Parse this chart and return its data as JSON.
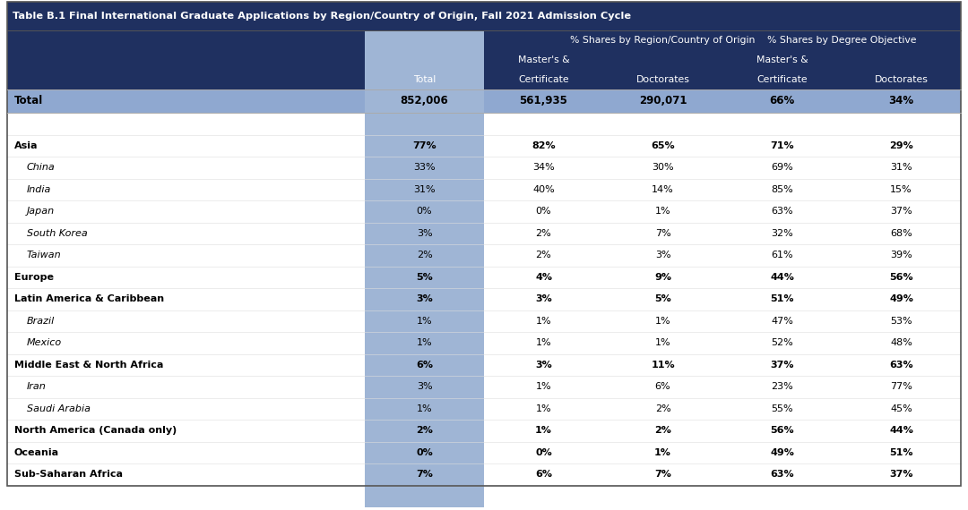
{
  "title": "Table B.1 Final International Graduate Applications by Region/Country of Origin, Fall 2021 Admission Cycle",
  "header_bg": "#1f3060",
  "total_row_bg": "#8fa8d0",
  "col_highlight_bg": "#9fb5d5",
  "white_bg": "#ffffff",
  "subheader1": "% Shares by Region/Country of Origin",
  "subheader2": "% Shares by Degree Objective",
  "title_color": "#ffffff",
  "header_text_color": "#ffffff",
  "data_text_color": "#000000",
  "rows": [
    {
      "label": "Total",
      "values": [
        "852,006",
        "561,935",
        "290,071",
        "66%",
        "34%"
      ],
      "bold": true,
      "indent": false,
      "is_total": true
    },
    {
      "label": "",
      "values": [
        "",
        "",
        "",
        "",
        ""
      ],
      "bold": false,
      "indent": false,
      "is_total": false
    },
    {
      "label": "Asia",
      "values": [
        "77%",
        "82%",
        "65%",
        "71%",
        "29%"
      ],
      "bold": true,
      "indent": false,
      "is_total": false
    },
    {
      "label": "China",
      "values": [
        "33%",
        "34%",
        "30%",
        "69%",
        "31%"
      ],
      "bold": false,
      "indent": true,
      "is_total": false
    },
    {
      "label": "India",
      "values": [
        "31%",
        "40%",
        "14%",
        "85%",
        "15%"
      ],
      "bold": false,
      "indent": true,
      "is_total": false
    },
    {
      "label": "Japan",
      "values": [
        "0%",
        "0%",
        "1%",
        "63%",
        "37%"
      ],
      "bold": false,
      "indent": true,
      "is_total": false
    },
    {
      "label": "South Korea",
      "values": [
        "3%",
        "2%",
        "7%",
        "32%",
        "68%"
      ],
      "bold": false,
      "indent": true,
      "is_total": false
    },
    {
      "label": "Taiwan",
      "values": [
        "2%",
        "2%",
        "3%",
        "61%",
        "39%"
      ],
      "bold": false,
      "indent": true,
      "is_total": false
    },
    {
      "label": "Europe",
      "values": [
        "5%",
        "4%",
        "9%",
        "44%",
        "56%"
      ],
      "bold": true,
      "indent": false,
      "is_total": false
    },
    {
      "label": "Latin America & Caribbean",
      "values": [
        "3%",
        "3%",
        "5%",
        "51%",
        "49%"
      ],
      "bold": true,
      "indent": false,
      "is_total": false
    },
    {
      "label": "Brazil",
      "values": [
        "1%",
        "1%",
        "1%",
        "47%",
        "53%"
      ],
      "bold": false,
      "indent": true,
      "is_total": false
    },
    {
      "label": "Mexico",
      "values": [
        "1%",
        "1%",
        "1%",
        "52%",
        "48%"
      ],
      "bold": false,
      "indent": true,
      "is_total": false
    },
    {
      "label": "Middle East & North Africa",
      "values": [
        "6%",
        "3%",
        "11%",
        "37%",
        "63%"
      ],
      "bold": true,
      "indent": false,
      "is_total": false
    },
    {
      "label": "Iran",
      "values": [
        "3%",
        "1%",
        "6%",
        "23%",
        "77%"
      ],
      "bold": false,
      "indent": true,
      "is_total": false
    },
    {
      "label": "Saudi Arabia",
      "values": [
        "1%",
        "1%",
        "2%",
        "55%",
        "45%"
      ],
      "bold": false,
      "indent": true,
      "is_total": false
    },
    {
      "label": "North America (Canada only)",
      "values": [
        "2%",
        "1%",
        "2%",
        "56%",
        "44%"
      ],
      "bold": true,
      "indent": false,
      "is_total": false
    },
    {
      "label": "Oceania",
      "values": [
        "0%",
        "0%",
        "1%",
        "49%",
        "51%"
      ],
      "bold": true,
      "indent": false,
      "is_total": false
    },
    {
      "label": "Sub-Saharan Africa",
      "values": [
        "7%",
        "6%",
        "7%",
        "63%",
        "37%"
      ],
      "bold": true,
      "indent": false,
      "is_total": false
    }
  ]
}
